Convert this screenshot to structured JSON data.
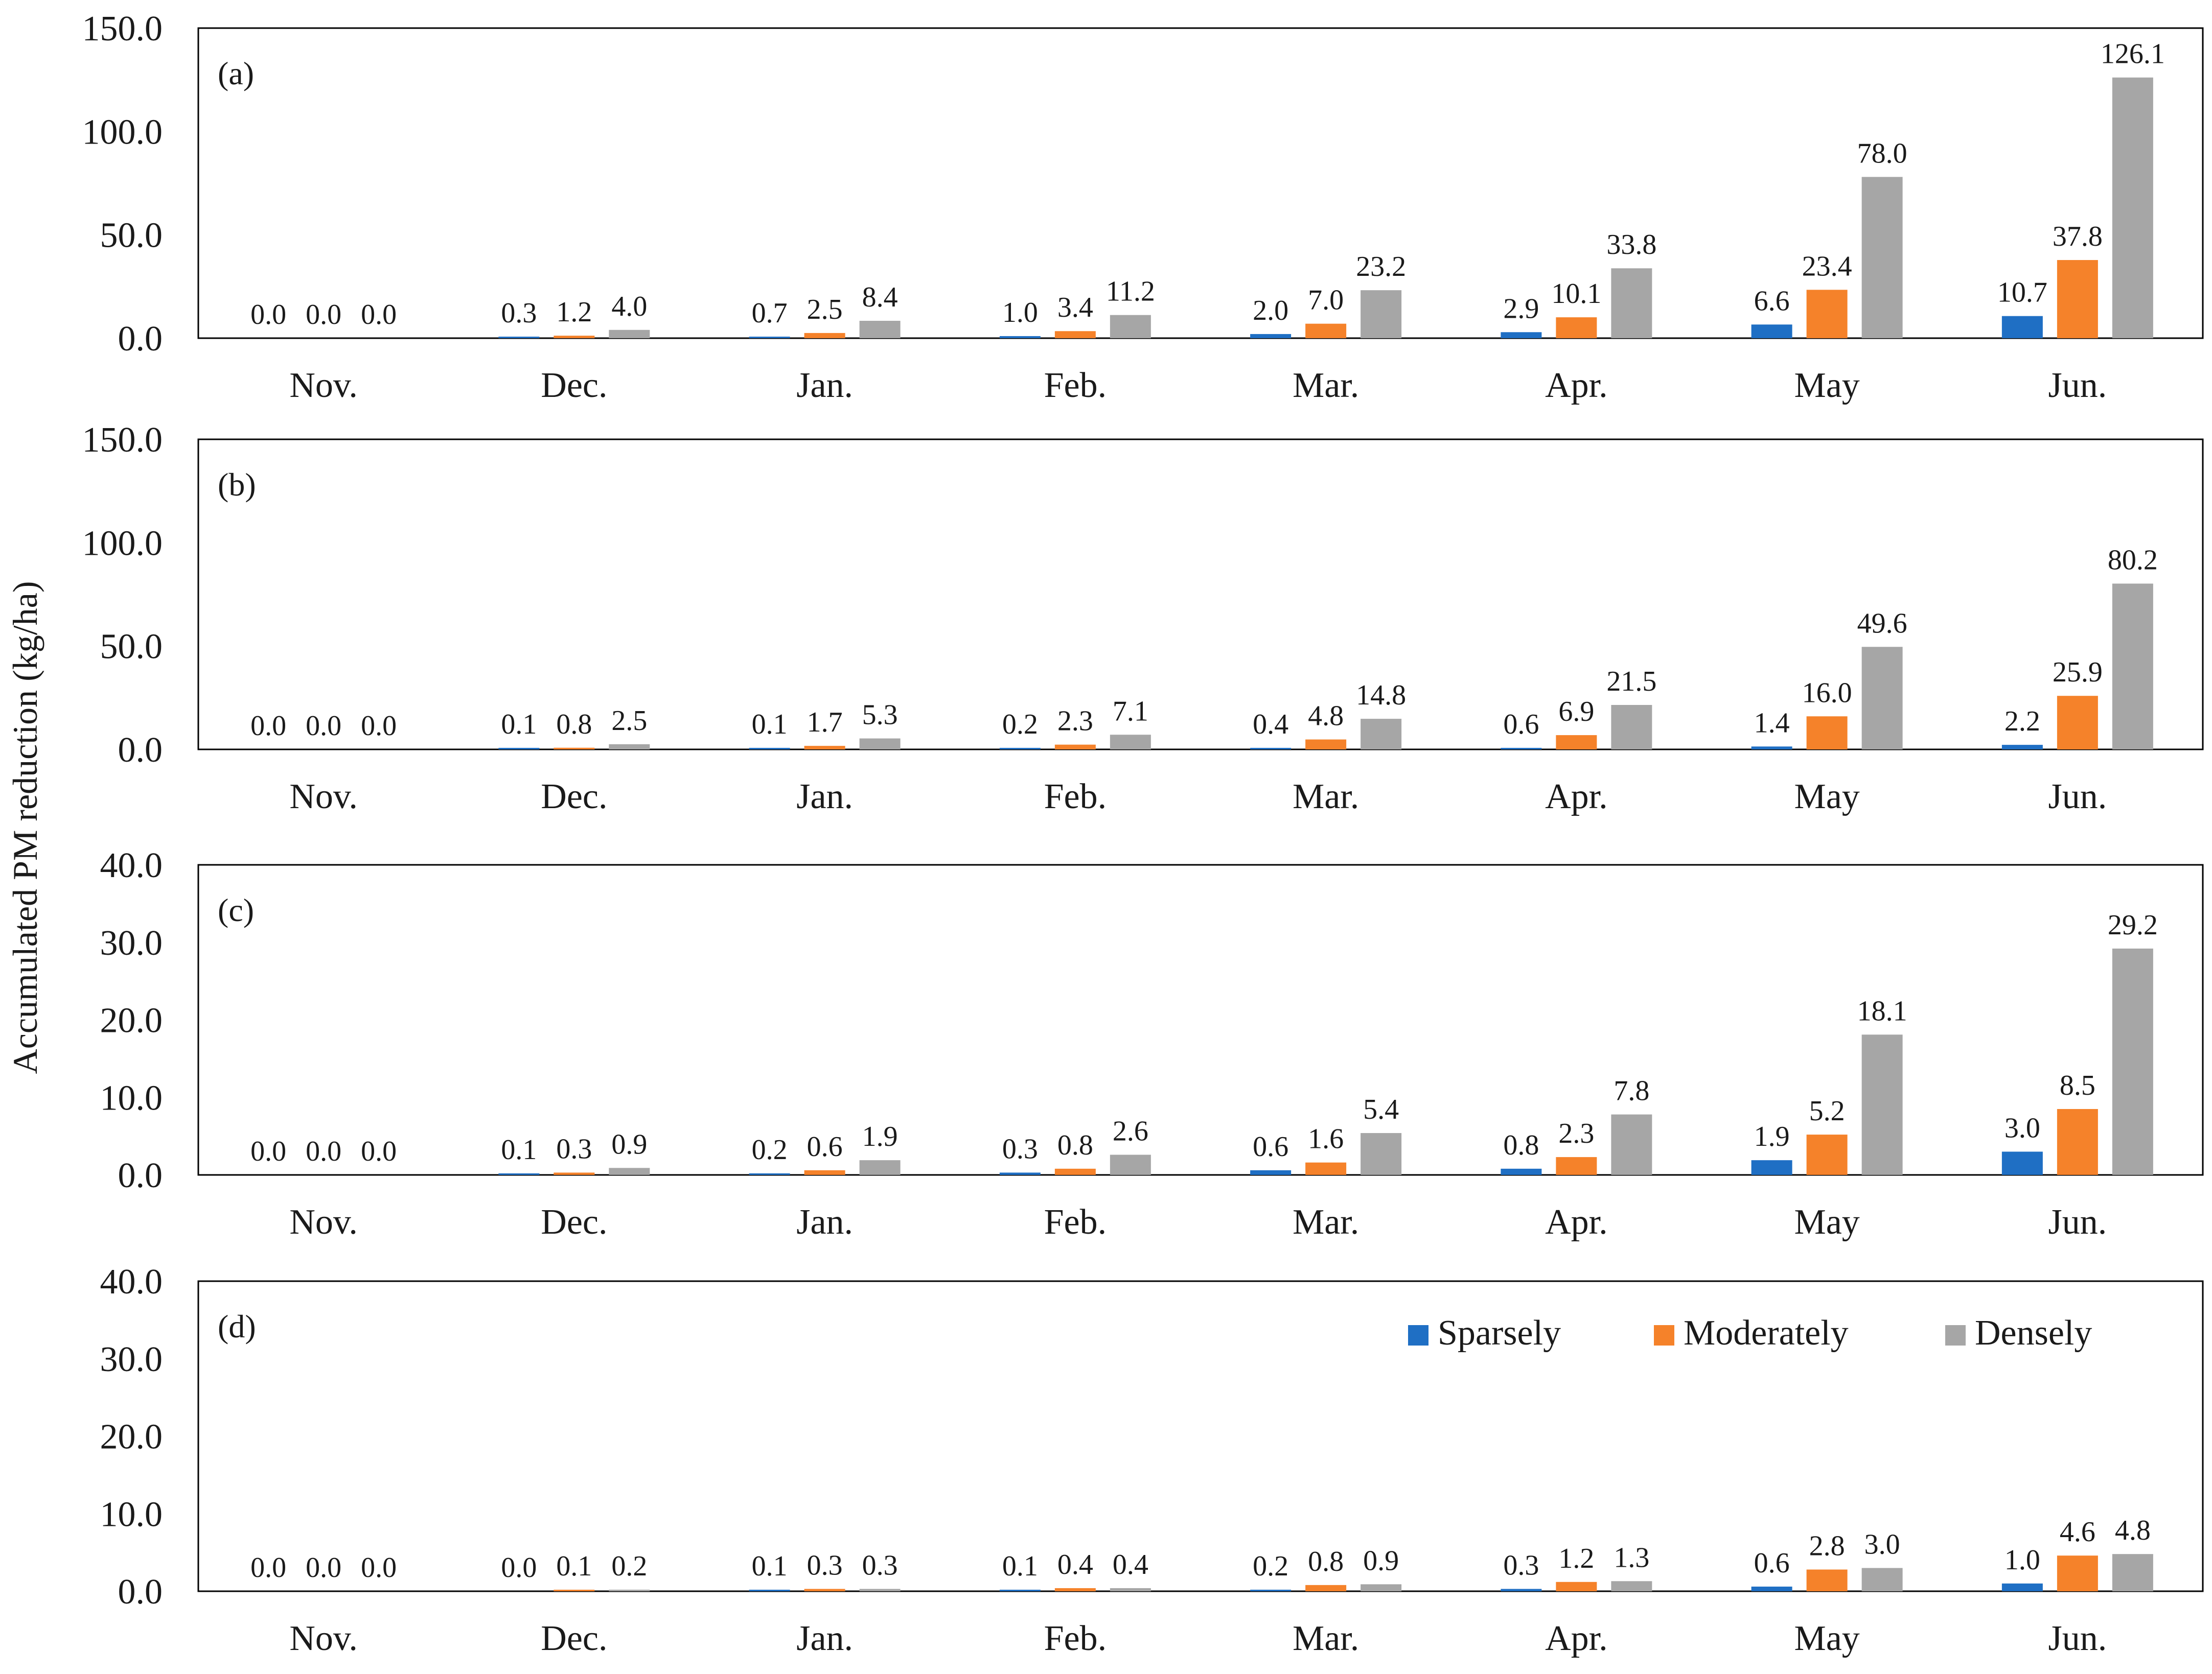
{
  "figure": {
    "ylabel": "Accumulated PM reduction (kg/ha)"
  },
  "legend": {
    "placement": "top-right of panel (d)",
    "entries": [
      "Sparsely",
      "Moderately",
      "Densely"
    ]
  },
  "colors": {
    "Sparsely": "#1f6fc4",
    "Moderately": "#f5822a",
    "Densely": "#a6a6a6",
    "axis": "#000000",
    "text": "#1a1a1a"
  },
  "chart_data": [
    {
      "type": "bar",
      "panel": "(a)",
      "categories": [
        "Nov.",
        "Dec.",
        "Jan.",
        "Feb.",
        "Mar.",
        "Apr.",
        "May",
        "Jun."
      ],
      "series": [
        {
          "name": "Sparsely",
          "values": [
            0.0,
            0.3,
            0.7,
            1.0,
            2.0,
            2.9,
            6.6,
            10.7
          ],
          "labels": [
            "0.0",
            "0.3",
            "0.7",
            "1.0",
            "2.0",
            "2.9",
            "6.6",
            "10.7"
          ]
        },
        {
          "name": "Moderately",
          "values": [
            0.0,
            1.2,
            2.5,
            3.4,
            7.0,
            10.1,
            23.4,
            37.8
          ],
          "labels": [
            "0.0",
            "1.2",
            "2.5",
            "3.4",
            "7.0",
            "10.1",
            "23.4",
            "37.8"
          ]
        },
        {
          "name": "Densely",
          "values": [
            0.0,
            4.0,
            8.4,
            11.2,
            23.2,
            33.8,
            78.0,
            126.1
          ],
          "labels": [
            "0.0",
            "4.0",
            "8.4",
            "11.2",
            "23.2",
            "33.8",
            "78.0",
            "126.1"
          ]
        }
      ],
      "ylim": [
        0,
        150
      ],
      "yticks": [
        "0.0",
        "50.0",
        "100.0",
        "150.0"
      ],
      "grid": false
    },
    {
      "type": "bar",
      "panel": "(b)",
      "categories": [
        "Nov.",
        "Dec.",
        "Jan.",
        "Feb.",
        "Mar.",
        "Apr.",
        "May",
        "Jun."
      ],
      "series": [
        {
          "name": "Sparsely",
          "values": [
            0.0,
            0.1,
            0.1,
            0.2,
            0.4,
            0.6,
            1.4,
            2.2
          ],
          "labels": [
            "0.0",
            "0.1",
            "0.1",
            "0.2",
            "0.4",
            "0.6",
            "1.4",
            "2.2"
          ]
        },
        {
          "name": "Moderately",
          "values": [
            0.0,
            0.8,
            1.7,
            2.3,
            4.8,
            6.9,
            16.0,
            25.9
          ],
          "labels": [
            "0.0",
            "0.8",
            "1.7",
            "2.3",
            "4.8",
            "6.9",
            "16.0",
            "25.9"
          ]
        },
        {
          "name": "Densely",
          "values": [
            0.0,
            2.5,
            5.3,
            7.1,
            14.8,
            21.5,
            49.6,
            80.2
          ],
          "labels": [
            "0.0",
            "2.5",
            "5.3",
            "7.1",
            "14.8",
            "21.5",
            "49.6",
            "80.2"
          ]
        }
      ],
      "ylim": [
        0,
        150
      ],
      "yticks": [
        "0.0",
        "50.0",
        "100.0",
        "150.0"
      ],
      "grid": false
    },
    {
      "type": "bar",
      "panel": "(c)",
      "categories": [
        "Nov.",
        "Dec.",
        "Jan.",
        "Feb.",
        "Mar.",
        "Apr.",
        "May",
        "Jun."
      ],
      "series": [
        {
          "name": "Sparsely",
          "values": [
            0.0,
            0.1,
            0.2,
            0.3,
            0.6,
            0.8,
            1.9,
            3.0
          ],
          "labels": [
            "0.0",
            "0.1",
            "0.2",
            "0.3",
            "0.6",
            "0.8",
            "1.9",
            "3.0"
          ]
        },
        {
          "name": "Moderately",
          "values": [
            0.0,
            0.3,
            0.6,
            0.8,
            1.6,
            2.3,
            5.2,
            8.5
          ],
          "labels": [
            "0.0",
            "0.3",
            "0.6",
            "0.8",
            "1.6",
            "2.3",
            "5.2",
            "8.5"
          ]
        },
        {
          "name": "Densely",
          "values": [
            0.0,
            0.9,
            1.9,
            2.6,
            5.4,
            7.8,
            18.1,
            29.2
          ],
          "labels": [
            "0.0",
            "0.9",
            "1.9",
            "2.6",
            "5.4",
            "7.8",
            "18.1",
            "29.2"
          ]
        }
      ],
      "ylim": [
        0,
        40
      ],
      "yticks": [
        "0.0",
        "10.0",
        "20.0",
        "30.0",
        "40.0"
      ],
      "grid": false
    },
    {
      "type": "bar",
      "panel": "(d)",
      "categories": [
        "Nov.",
        "Dec.",
        "Jan.",
        "Feb.",
        "Mar.",
        "Apr.",
        "May",
        "Jun."
      ],
      "series": [
        {
          "name": "Sparsely",
          "values": [
            0.0,
            0.0,
            0.1,
            0.1,
            0.2,
            0.3,
            0.6,
            1.0
          ],
          "labels": [
            "0.0",
            "0.0",
            "0.1",
            "0.1",
            "0.2",
            "0.3",
            "0.6",
            "1.0"
          ]
        },
        {
          "name": "Moderately",
          "values": [
            0.0,
            0.1,
            0.3,
            0.4,
            0.8,
            1.2,
            2.8,
            4.6
          ],
          "labels": [
            "0.0",
            "0.1",
            "0.3",
            "0.4",
            "0.8",
            "1.2",
            "2.8",
            "4.6"
          ]
        },
        {
          "name": "Densely",
          "values": [
            0.0,
            0.2,
            0.3,
            0.4,
            0.9,
            1.3,
            3.0,
            4.8
          ],
          "labels": [
            "0.0",
            "0.2",
            "0.3",
            "0.4",
            "0.9",
            "1.3",
            "3.0",
            "4.8"
          ]
        }
      ],
      "ylim": [
        0,
        40
      ],
      "yticks": [
        "0.0",
        "10.0",
        "20.0",
        "30.0",
        "40.0"
      ],
      "grid": false
    }
  ]
}
